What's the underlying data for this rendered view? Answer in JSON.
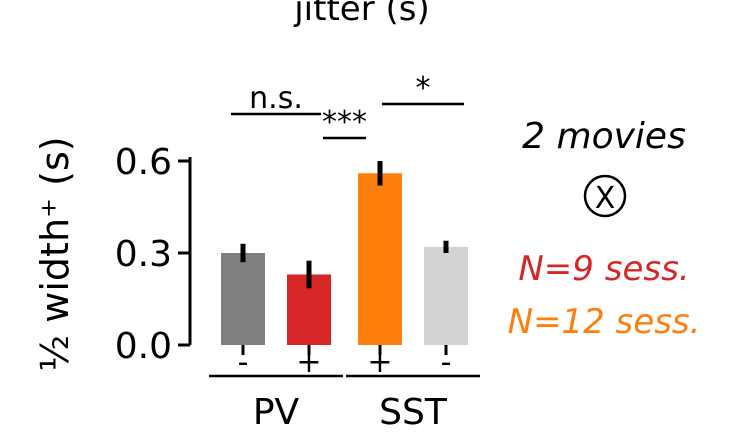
{
  "chart_data": {
    "type": "bar",
    "title": "jitter (s)",
    "ylabel": "½ width⁺ (s)",
    "ylim": [
      0,
      0.6
    ],
    "yticks": [
      "0.0",
      "0.3",
      "0.6"
    ],
    "groups": [
      "PV",
      "SST"
    ],
    "bars": [
      {
        "group": "PV",
        "label": "-",
        "value": 0.3,
        "err": 0.03,
        "color": "#808080"
      },
      {
        "group": "PV",
        "label": "+",
        "value": 0.23,
        "err": 0.045,
        "color": "#d62728"
      },
      {
        "group": "SST",
        "label": "+",
        "value": 0.56,
        "err": 0.04,
        "color": "#ff7f0e"
      },
      {
        "group": "SST",
        "label": "-",
        "value": 0.32,
        "err": 0.02,
        "color": "#d3d3d3"
      }
    ],
    "significance": [
      {
        "text": "n.s.",
        "between": [
          "PV -",
          "PV +"
        ]
      },
      {
        "text": "***",
        "between": [
          "PV +",
          "SST +"
        ]
      },
      {
        "text": "*",
        "between": [
          "SST +",
          "SST -"
        ]
      }
    ]
  },
  "annotations": {
    "movies": "2 movies",
    "symbol": "X",
    "n_pv": "N=9 sess.",
    "n_sst": "N=12 sess.",
    "color_pv": "#d62728",
    "color_sst": "#ff7f0e"
  }
}
